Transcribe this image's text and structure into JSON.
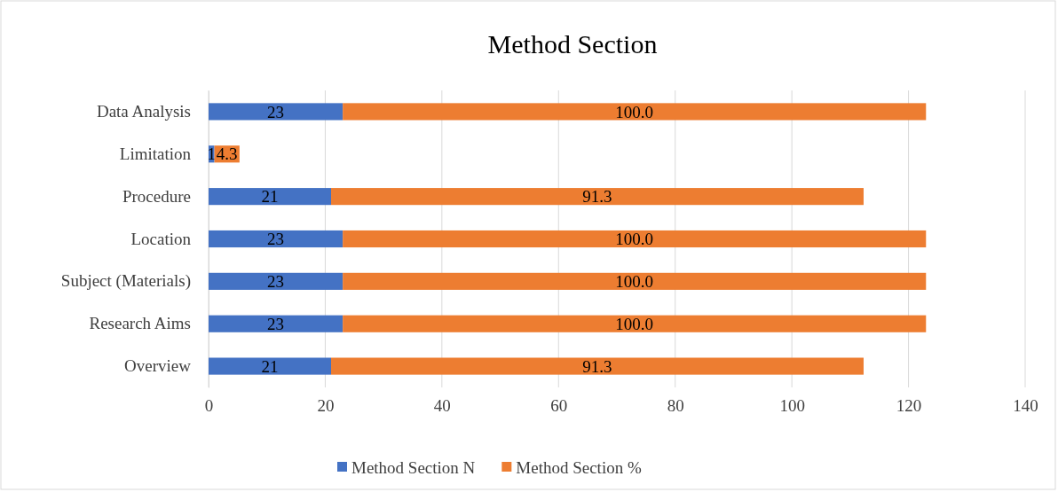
{
  "chart_data": {
    "type": "bar",
    "title": "Method Section",
    "orientation": "horizontal",
    "stacked": true,
    "categories": [
      "Data Analysis",
      "Limitation",
      "Procedure",
      "Location",
      "Subject (Materials)",
      "Research Aims",
      "Overview"
    ],
    "series": [
      {
        "name": "Method Section N",
        "color": "#4472c4",
        "values": [
          23,
          1,
          21,
          23,
          23,
          23,
          21
        ],
        "value_labels": [
          "23",
          "1",
          "21",
          "23",
          "23",
          "23",
          "21"
        ]
      },
      {
        "name": "Method Section %",
        "color": "#ed7d31",
        "values": [
          100.0,
          4.3,
          91.3,
          100.0,
          100.0,
          100.0,
          91.3
        ],
        "value_labels": [
          "100.0",
          "4.3",
          "91.3",
          "100.0",
          "100.0",
          "100.0",
          "91.3"
        ]
      }
    ],
    "xlim": [
      0,
      140
    ],
    "xticks": [
      0,
      20,
      40,
      60,
      80,
      100,
      120,
      140
    ],
    "grid": "x",
    "legend": "bottom"
  }
}
